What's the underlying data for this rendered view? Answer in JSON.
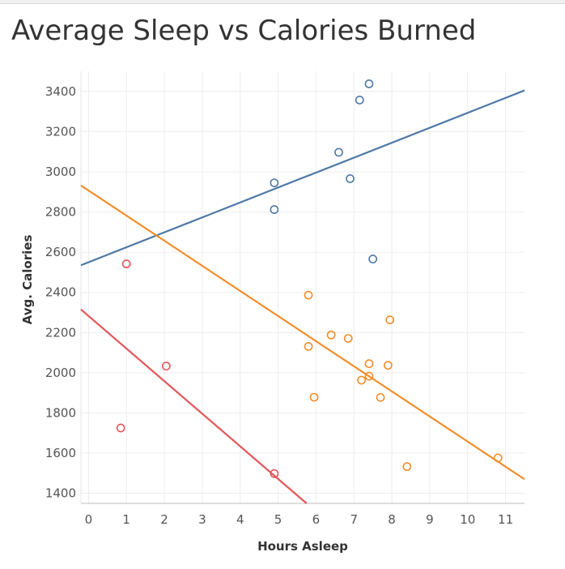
{
  "title": "Average Sleep vs Calories Burned",
  "chart_data": {
    "type": "scatter",
    "title": "Average Sleep vs Calories Burned",
    "xlabel": "Hours Asleep",
    "ylabel": "Avg. Calories",
    "xlim": [
      -0.2,
      11.5
    ],
    "ylim": [
      1350,
      3500
    ],
    "x_ticks": [
      0,
      1,
      2,
      3,
      4,
      5,
      6,
      7,
      8,
      9,
      10,
      11
    ],
    "y_ticks": [
      1400,
      1600,
      1800,
      2000,
      2200,
      2400,
      2600,
      2800,
      3000,
      3200,
      3400
    ],
    "grid": true,
    "series": [
      {
        "color": "#4e79a7",
        "points": [
          {
            "x": 4.9,
            "y": 2945
          },
          {
            "x": 4.9,
            "y": 2812
          },
          {
            "x": 6.6,
            "y": 3097
          },
          {
            "x": 6.9,
            "y": 2966
          },
          {
            "x": 7.15,
            "y": 3357
          },
          {
            "x": 7.4,
            "y": 3438
          },
          {
            "x": 7.5,
            "y": 2566
          }
        ],
        "trend": [
          {
            "x": -0.2,
            "y": 2535
          },
          {
            "x": 11.5,
            "y": 3405
          }
        ]
      },
      {
        "color": "#f28e2b",
        "points": [
          {
            "x": 5.8,
            "y": 2386
          },
          {
            "x": 5.8,
            "y": 2131
          },
          {
            "x": 5.95,
            "y": 1878
          },
          {
            "x": 6.4,
            "y": 2188
          },
          {
            "x": 6.85,
            "y": 2171
          },
          {
            "x": 7.2,
            "y": 1963
          },
          {
            "x": 7.4,
            "y": 2045
          },
          {
            "x": 7.4,
            "y": 1983
          },
          {
            "x": 7.7,
            "y": 1877
          },
          {
            "x": 7.9,
            "y": 2037
          },
          {
            "x": 7.95,
            "y": 2263
          },
          {
            "x": 8.4,
            "y": 1533
          },
          {
            "x": 10.8,
            "y": 1576
          }
        ],
        "trend": [
          {
            "x": -0.2,
            "y": 2932
          },
          {
            "x": 11.5,
            "y": 1470
          }
        ]
      },
      {
        "color": "#e15759",
        "points": [
          {
            "x": 1.0,
            "y": 2542
          },
          {
            "x": 0.85,
            "y": 1725
          },
          {
            "x": 2.05,
            "y": 2033
          },
          {
            "x": 4.9,
            "y": 1498
          }
        ],
        "trend": [
          {
            "x": -0.2,
            "y": 2315
          },
          {
            "x": 5.75,
            "y": 1350
          }
        ]
      }
    ]
  }
}
